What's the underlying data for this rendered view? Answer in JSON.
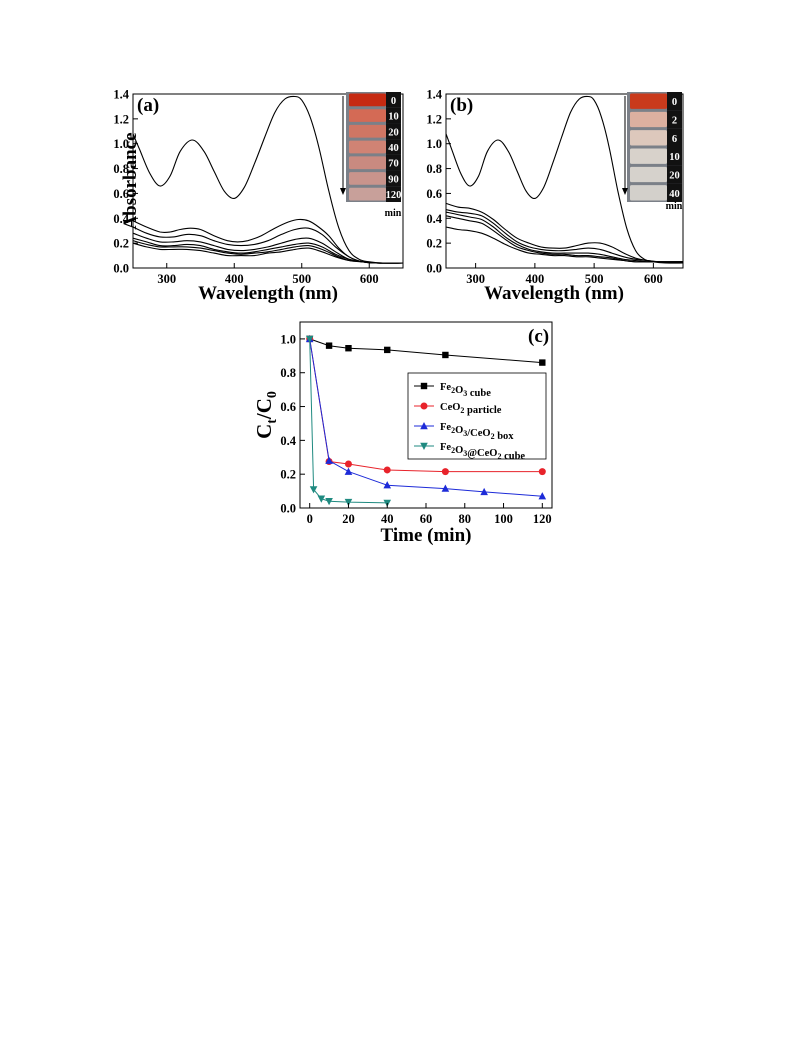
{
  "chart_data": [
    {
      "type": "line",
      "panel_label": "(a)",
      "xlabel": "Wavelength (nm)",
      "ylabel": "Absorbance",
      "xlim": [
        250,
        650
      ],
      "ylim": [
        0.0,
        1.4
      ],
      "xticks": [
        "300",
        "400",
        "500",
        "600"
      ],
      "yticks": [
        "0.0",
        "0.2",
        "0.4",
        "0.6",
        "0.8",
        "1.0",
        "1.2",
        "1.4"
      ],
      "grid": false,
      "series": [
        {
          "x": [
            250,
            260,
            275,
            290,
            305,
            320,
            338,
            355,
            370,
            385,
            400,
            415,
            430,
            445,
            460,
            475,
            490,
            500,
            512,
            525,
            540,
            555,
            570,
            585,
            600,
            620,
            650
          ],
          "values": [
            1.08,
            0.95,
            0.76,
            0.66,
            0.74,
            0.94,
            1.03,
            0.94,
            0.78,
            0.62,
            0.56,
            0.65,
            0.84,
            1.05,
            1.25,
            1.36,
            1.38,
            1.35,
            1.22,
            0.98,
            0.62,
            0.32,
            0.14,
            0.07,
            0.05,
            0.04,
            0.04
          ]
        },
        {
          "x": [
            250,
            270,
            290,
            305,
            320,
            335,
            350,
            370,
            390,
            405,
            420,
            440,
            460,
            480,
            495,
            510,
            525,
            540,
            555,
            570,
            590,
            610,
            650
          ],
          "values": [
            0.38,
            0.33,
            0.29,
            0.29,
            0.31,
            0.32,
            0.31,
            0.26,
            0.22,
            0.21,
            0.22,
            0.26,
            0.32,
            0.37,
            0.39,
            0.38,
            0.33,
            0.26,
            0.16,
            0.09,
            0.05,
            0.04,
            0.04
          ]
        },
        {
          "x": [
            250,
            270,
            290,
            310,
            330,
            350,
            370,
            390,
            410,
            430,
            450,
            470,
            490,
            510,
            530,
            550,
            570,
            590,
            610,
            650
          ],
          "values": [
            0.33,
            0.28,
            0.25,
            0.25,
            0.27,
            0.26,
            0.22,
            0.19,
            0.18,
            0.19,
            0.22,
            0.27,
            0.31,
            0.32,
            0.27,
            0.17,
            0.09,
            0.05,
            0.04,
            0.04
          ]
        },
        {
          "x": [
            250,
            270,
            290,
            310,
            330,
            350,
            370,
            390,
            410,
            430,
            450,
            470,
            490,
            510,
            530,
            550,
            570,
            590,
            610,
            650
          ],
          "values": [
            0.28,
            0.24,
            0.21,
            0.21,
            0.22,
            0.21,
            0.18,
            0.15,
            0.14,
            0.15,
            0.17,
            0.2,
            0.23,
            0.24,
            0.2,
            0.13,
            0.07,
            0.05,
            0.04,
            0.04
          ]
        },
        {
          "x": [
            250,
            270,
            290,
            310,
            330,
            350,
            370,
            390,
            410,
            430,
            450,
            470,
            490,
            510,
            530,
            550,
            570,
            590,
            610,
            650
          ],
          "values": [
            0.24,
            0.21,
            0.18,
            0.18,
            0.19,
            0.18,
            0.15,
            0.13,
            0.12,
            0.13,
            0.15,
            0.17,
            0.19,
            0.2,
            0.17,
            0.11,
            0.07,
            0.05,
            0.04,
            0.04
          ]
        },
        {
          "x": [
            250,
            270,
            290,
            310,
            330,
            350,
            370,
            390,
            410,
            430,
            450,
            470,
            490,
            510,
            530,
            550,
            570,
            590,
            610,
            650
          ],
          "values": [
            0.22,
            0.19,
            0.17,
            0.17,
            0.17,
            0.16,
            0.14,
            0.12,
            0.11,
            0.12,
            0.13,
            0.15,
            0.17,
            0.18,
            0.15,
            0.1,
            0.06,
            0.05,
            0.04,
            0.04
          ]
        },
        {
          "x": [
            250,
            270,
            290,
            310,
            330,
            350,
            370,
            390,
            410,
            430,
            450,
            470,
            490,
            510,
            530,
            550,
            570,
            590,
            610,
            650
          ],
          "values": [
            0.2,
            0.17,
            0.15,
            0.15,
            0.15,
            0.14,
            0.12,
            0.1,
            0.1,
            0.1,
            0.12,
            0.13,
            0.15,
            0.16,
            0.13,
            0.09,
            0.06,
            0.05,
            0.04,
            0.04
          ]
        }
      ],
      "inset": {
        "labels": [
          "0",
          "10",
          "20",
          "40",
          "70",
          "90",
          "120"
        ],
        "unit": "min",
        "colors": [
          "#c62a12",
          "#d46a55",
          "#cf7664",
          "#d08374",
          "#c98a80",
          "#c9948c",
          "#c8a09a"
        ]
      }
    },
    {
      "type": "line",
      "panel_label": "(b)",
      "xlabel": "Wavelength (nm)",
      "ylabel": "",
      "xlim": [
        250,
        650
      ],
      "ylim": [
        0.0,
        1.4
      ],
      "xticks": [
        "300",
        "400",
        "500",
        "600"
      ],
      "yticks": [
        "0.0",
        "0.2",
        "0.4",
        "0.6",
        "0.8",
        "1.0",
        "1.2",
        "1.4"
      ],
      "grid": false,
      "series": [
        {
          "x": [
            250,
            260,
            275,
            290,
            305,
            320,
            338,
            355,
            370,
            385,
            400,
            415,
            430,
            445,
            460,
            475,
            490,
            500,
            512,
            525,
            540,
            555,
            570,
            585,
            600,
            620,
            650
          ],
          "values": [
            1.08,
            0.95,
            0.76,
            0.66,
            0.74,
            0.94,
            1.03,
            0.94,
            0.78,
            0.62,
            0.56,
            0.65,
            0.84,
            1.05,
            1.25,
            1.36,
            1.38,
            1.35,
            1.22,
            0.98,
            0.62,
            0.32,
            0.14,
            0.07,
            0.05,
            0.04,
            0.04
          ]
        },
        {
          "x": [
            250,
            270,
            290,
            310,
            330,
            350,
            370,
            390,
            410,
            430,
            450,
            470,
            490,
            510,
            530,
            550,
            570,
            590,
            610,
            650
          ],
          "values": [
            0.52,
            0.49,
            0.48,
            0.45,
            0.39,
            0.31,
            0.24,
            0.2,
            0.17,
            0.16,
            0.16,
            0.18,
            0.2,
            0.2,
            0.17,
            0.12,
            0.08,
            0.06,
            0.05,
            0.05
          ]
        },
        {
          "x": [
            250,
            270,
            290,
            310,
            330,
            350,
            370,
            390,
            410,
            430,
            450,
            470,
            490,
            510,
            530,
            550,
            570,
            590,
            610,
            650
          ],
          "values": [
            0.47,
            0.45,
            0.44,
            0.42,
            0.36,
            0.28,
            0.21,
            0.17,
            0.15,
            0.14,
            0.14,
            0.15,
            0.16,
            0.15,
            0.12,
            0.09,
            0.07,
            0.06,
            0.05,
            0.05
          ]
        },
        {
          "x": [
            250,
            270,
            290,
            310,
            330,
            350,
            370,
            390,
            410,
            430,
            450,
            470,
            490,
            510,
            530,
            550,
            570,
            590,
            610,
            650
          ],
          "values": [
            0.45,
            0.43,
            0.41,
            0.39,
            0.33,
            0.25,
            0.19,
            0.15,
            0.13,
            0.12,
            0.12,
            0.12,
            0.12,
            0.11,
            0.09,
            0.07,
            0.06,
            0.05,
            0.05,
            0.05
          ]
        },
        {
          "x": [
            250,
            270,
            290,
            310,
            330,
            350,
            370,
            390,
            410,
            430,
            450,
            470,
            490,
            510,
            530,
            550,
            570,
            590,
            610,
            650
          ],
          "values": [
            0.42,
            0.4,
            0.38,
            0.36,
            0.3,
            0.23,
            0.17,
            0.14,
            0.12,
            0.11,
            0.11,
            0.1,
            0.1,
            0.09,
            0.08,
            0.06,
            0.05,
            0.05,
            0.05,
            0.05
          ]
        },
        {
          "x": [
            250,
            270,
            290,
            310,
            330,
            350,
            370,
            390,
            410,
            430,
            450,
            470,
            490,
            510,
            530,
            550,
            570,
            590,
            610,
            650
          ],
          "values": [
            0.33,
            0.31,
            0.3,
            0.28,
            0.24,
            0.19,
            0.15,
            0.12,
            0.11,
            0.1,
            0.1,
            0.09,
            0.09,
            0.08,
            0.07,
            0.06,
            0.05,
            0.05,
            0.05,
            0.05
          ]
        }
      ],
      "inset": {
        "labels": [
          "0",
          "2",
          "6",
          "10",
          "20",
          "40"
        ],
        "unit": "min",
        "colors": [
          "#c93a1c",
          "#dcb0a0",
          "#ddc8bc",
          "#d8d2cb",
          "#d6d2cc",
          "#d3d0cb"
        ]
      }
    },
    {
      "type": "line",
      "panel_label": "(c)",
      "xlabel": "Time (min)",
      "ylabel": "Ct/C0",
      "xlim": [
        -5,
        125
      ],
      "ylim": [
        0.0,
        1.1
      ],
      "xticks": [
        "0",
        "20",
        "40",
        "60",
        "80",
        "100",
        "120"
      ],
      "yticks": [
        "0.0",
        "0.2",
        "0.4",
        "0.6",
        "0.8",
        "1.0"
      ],
      "grid": false,
      "legend_position": "right",
      "series": [
        {
          "name": "Fe2O3 cube",
          "color": "#000000",
          "marker": "square",
          "x": [
            0,
            10,
            20,
            40,
            70,
            120
          ],
          "values": [
            1.0,
            0.96,
            0.945,
            0.935,
            0.905,
            0.86
          ]
        },
        {
          "name": "CeO2 particle",
          "color": "#e8232b",
          "marker": "circle",
          "x": [
            0,
            10,
            20,
            40,
            70,
            120
          ],
          "values": [
            1.0,
            0.275,
            0.26,
            0.225,
            0.215,
            0.215
          ]
        },
        {
          "name": "Fe2O3/CeO2 box",
          "color": "#1d2bd8",
          "marker": "triangle-up",
          "x": [
            0,
            10,
            20,
            40,
            70,
            90,
            120
          ],
          "values": [
            1.0,
            0.28,
            0.215,
            0.135,
            0.115,
            0.095,
            0.07
          ]
        },
        {
          "name": "Fe2O3@CeO2 cube",
          "color": "#1f8a80",
          "marker": "triangle-down",
          "x": [
            0,
            2,
            6,
            10,
            20,
            40
          ],
          "values": [
            1.0,
            0.11,
            0.055,
            0.04,
            0.035,
            0.03
          ]
        }
      ]
    }
  ]
}
